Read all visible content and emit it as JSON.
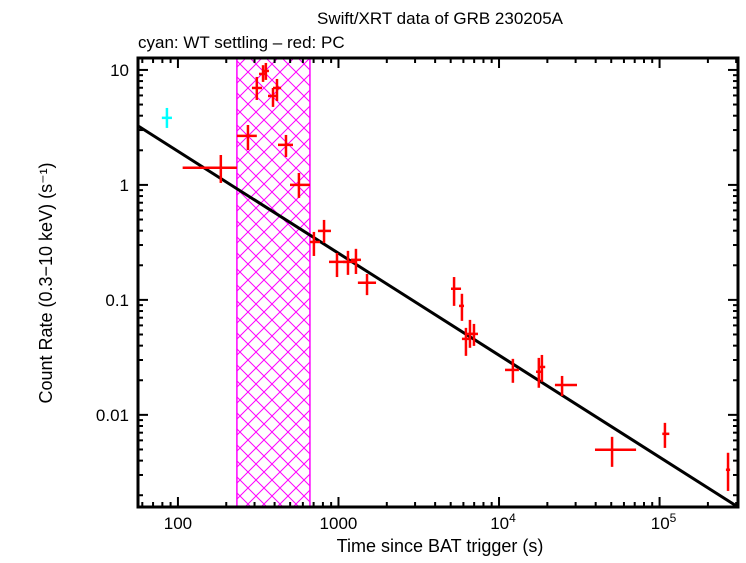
{
  "chart_data": {
    "type": "scatter",
    "title": "Swift/XRT data of GRB 230205A",
    "subtitle": "cyan: WT settling – red: PC",
    "xlabel": "Time since BAT trigger (s)",
    "ylabel": "Count Rate (0.3−10 keV) (s⁻¹)",
    "xscale": "log",
    "yscale": "log",
    "xlim": [
      56.4,
      308000
    ],
    "ylim": [
      0.00158,
      12.7
    ],
    "grid": false,
    "x_ticks": [
      {
        "value": 100,
        "label": "100"
      },
      {
        "value": 1000,
        "label": "1000"
      },
      {
        "value": 10000,
        "label": "10",
        "exp": "4"
      },
      {
        "value": 100000,
        "label": "10",
        "exp": "5"
      }
    ],
    "y_ticks": [
      {
        "value": 10,
        "label": "10"
      },
      {
        "value": 1,
        "label": "1"
      },
      {
        "value": 0.1,
        "label": "0.1"
      },
      {
        "value": 0.01,
        "label": "0.01"
      }
    ],
    "shaded_interval": {
      "x": [
        233,
        664
      ],
      "color": "#ff00ff",
      "pattern": "crosshatch"
    },
    "fit_line": {
      "color": "#000000",
      "points": [
        [
          56.4,
          3.26
        ],
        [
          308000,
          0.00158
        ]
      ]
    },
    "series": [
      {
        "color": "#00ffff",
        "points": [
          {
            "x": 85.4,
            "xlo": 79.4,
            "xhi": 91.8,
            "y": 3.83,
            "ylo": 3.13,
            "yhi": 4.67
          }
        ]
      },
      {
        "color": "#ff0000",
        "points": [
          {
            "x": 185,
            "xlo": 107,
            "xhi": 233,
            "y": 1.41,
            "ylo": 1.04,
            "yhi": 1.82
          },
          {
            "x": 273,
            "xlo": 233,
            "xhi": 310,
            "y": 2.67,
            "ylo": 2.01,
            "yhi": 3.32
          },
          {
            "x": 310,
            "xlo": 289,
            "xhi": 334,
            "y": 6.97,
            "ylo": 5.48,
            "yhi": 8.69
          },
          {
            "x": 339,
            "xlo": 320,
            "xhi": 353,
            "y": 9.23,
            "ylo": 7.87,
            "yhi": 11.0
          },
          {
            "x": 353,
            "xlo": 339,
            "xhi": 369,
            "y": 9.8,
            "ylo": 8.19,
            "yhi": 11.5
          },
          {
            "x": 391,
            "xlo": 364,
            "xhi": 408,
            "y": 5.94,
            "ylo": 4.77,
            "yhi": 6.97
          },
          {
            "x": 414,
            "xlo": 391,
            "xhi": 439,
            "y": 6.97,
            "ylo": 5.37,
            "yhi": 8.35
          },
          {
            "x": 471,
            "xlo": 420,
            "xhi": 521,
            "y": 2.23,
            "ylo": 1.75,
            "yhi": 2.72
          },
          {
            "x": 567,
            "xlo": 499,
            "xhi": 664,
            "y": 1.0,
            "ylo": 0.771,
            "yhi": 1.27
          },
          {
            "x": 703,
            "xlo": 664,
            "xhi": 767,
            "y": 0.319,
            "ylo": 0.241,
            "yhi": 0.39
          },
          {
            "x": 813,
            "xlo": 745,
            "xhi": 898,
            "y": 0.398,
            "ylo": 0.313,
            "yhi": 0.496
          },
          {
            "x": 979,
            "xlo": 873,
            "xhi": 1130,
            "y": 0.214,
            "ylo": 0.158,
            "yhi": 0.256
          },
          {
            "x": 1146,
            "xlo": 1067,
            "xhi": 1267,
            "y": 0.214,
            "ylo": 0.165,
            "yhi": 0.267
          },
          {
            "x": 1285,
            "xlo": 1197,
            "xhi": 1381,
            "y": 0.223,
            "ylo": 0.168,
            "yhi": 0.278
          },
          {
            "x": 1506,
            "xlo": 1321,
            "xhi": 1714,
            "y": 0.141,
            "ylo": 0.11,
            "yhi": 0.168
          },
          {
            "x": 5248,
            "xlo": 5023,
            "xhi": 5800,
            "y": 0.125,
            "ylo": 0.0887,
            "yhi": 0.158
          },
          {
            "x": 5875,
            "xlo": 5636,
            "xhi": 6053,
            "y": 0.0887,
            "ylo": 0.0657,
            "yhi": 0.113
          },
          {
            "x": 6223,
            "xlo": 5875,
            "xhi": 6501,
            "y": 0.0458,
            "ylo": 0.0326,
            "yhi": 0.0571
          },
          {
            "x": 6592,
            "xlo": 6324,
            "xhi": 6982,
            "y": 0.0506,
            "ylo": 0.0383,
            "yhi": 0.067
          },
          {
            "x": 6982,
            "xlo": 6699,
            "xhi": 7396,
            "y": 0.0506,
            "ylo": 0.0398,
            "yhi": 0.0618
          },
          {
            "x": 12200,
            "xlo": 10900,
            "xhi": 13300,
            "y": 0.0246,
            "ylo": 0.019,
            "yhi": 0.0307
          },
          {
            "x": 17700,
            "xlo": 17000,
            "xhi": 18300,
            "y": 0.0237,
            "ylo": 0.0172,
            "yhi": 0.0313
          },
          {
            "x": 18500,
            "xlo": 17700,
            "xhi": 19400,
            "y": 0.0261,
            "ylo": 0.0194,
            "yhi": 0.0332
          },
          {
            "x": 24700,
            "xlo": 22300,
            "xhi": 30600,
            "y": 0.0182,
            "ylo": 0.0146,
            "yhi": 0.0218
          },
          {
            "x": 50600,
            "xlo": 39600,
            "xhi": 71400,
            "y": 0.00497,
            "ylo": 0.00353,
            "yhi": 0.00644
          },
          {
            "x": 108000,
            "xlo": 104000,
            "xhi": 115000,
            "y": 0.00684,
            "ylo": 0.00516,
            "yhi": 0.00852
          },
          {
            "x": 267000,
            "xlo": 259000,
            "xhi": 275000,
            "y": 0.00333,
            "ylo": 0.00218,
            "yhi": 0.00468
          }
        ]
      }
    ]
  }
}
